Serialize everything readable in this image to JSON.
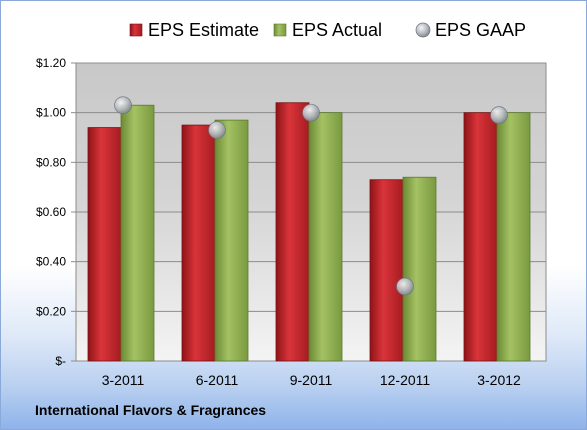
{
  "chart_data": {
    "type": "bar",
    "title": "",
    "xlabel": "",
    "ylabel": "",
    "categories": [
      "3-2011",
      "6-2011",
      "9-2011",
      "12-2011",
      "3-2012"
    ],
    "series": [
      {
        "name": "EPS Estimate",
        "kind": "bar",
        "color": "#c0262c",
        "values": [
          0.94,
          0.95,
          1.04,
          0.73,
          1.0
        ]
      },
      {
        "name": "EPS Actual",
        "kind": "bar",
        "color": "#8fae52",
        "values": [
          1.03,
          0.97,
          1.0,
          0.74,
          1.0
        ]
      },
      {
        "name": "EPS GAAP",
        "kind": "marker",
        "color": "#b4b8bf",
        "values": [
          1.03,
          0.93,
          1.0,
          0.3,
          0.99
        ]
      }
    ],
    "ylim": [
      0,
      1.2
    ],
    "yticks": [
      {
        "value": 0,
        "label": "$-"
      },
      {
        "value": 0.2,
        "label": "$0.20"
      },
      {
        "value": 0.4,
        "label": "$0.40"
      },
      {
        "value": 0.6,
        "label": "$0.60"
      },
      {
        "value": 0.8,
        "label": "$0.80"
      },
      {
        "value": 1.0,
        "label": "$1.00"
      },
      {
        "value": 1.2,
        "label": "$1.20"
      }
    ],
    "grid": true,
    "legend_position": "top"
  },
  "footer": {
    "company": "International Flavors & Fragrances"
  }
}
